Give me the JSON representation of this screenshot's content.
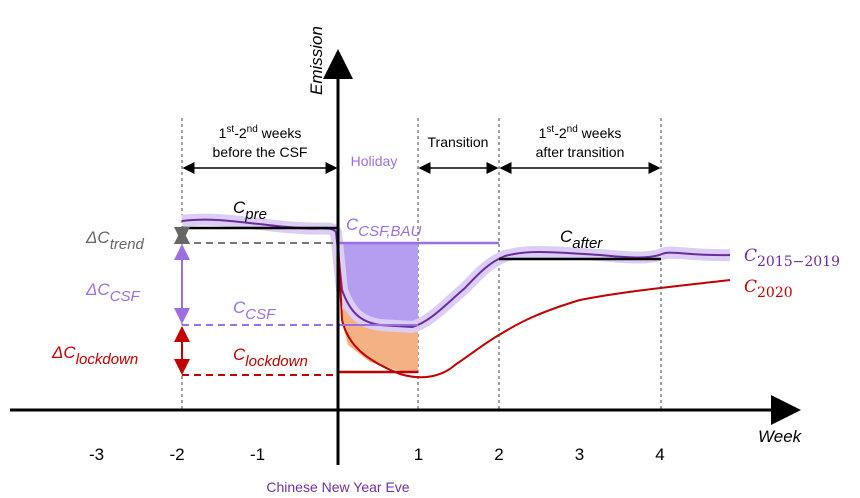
{
  "axes": {
    "y_label": "Emission",
    "x_label": "Week",
    "ticks": [
      -3,
      -2,
      -1,
      1,
      2,
      3,
      4
    ]
  },
  "periods": {
    "before": {
      "line1": [
        "1",
        "st",
        "-2",
        "nd",
        " weeks"
      ],
      "line2": "before the CSF"
    },
    "holiday": "Holiday",
    "transition": "Transition",
    "after": {
      "line1": [
        "1",
        "st",
        "-2",
        "nd",
        " weeks"
      ],
      "line2": "after transition"
    }
  },
  "levels": {
    "pre": [
      "C",
      "pre"
    ],
    "csf_bau": [
      "C",
      "CSF,BAU"
    ],
    "csf": [
      "C",
      "CSF"
    ],
    "lockdown": [
      "C",
      "lockdown"
    ],
    "after": [
      "C",
      "after"
    ]
  },
  "deltas": {
    "trend": [
      "ΔC",
      "trend"
    ],
    "csf": [
      "ΔC",
      "CSF"
    ],
    "lockdown": [
      "ΔC",
      "lockdown"
    ]
  },
  "curves": {
    "baseline": [
      "C",
      "2015−2019"
    ],
    "y2020": [
      "C",
      "2020"
    ]
  },
  "event": "Chinese New Year Eve"
}
